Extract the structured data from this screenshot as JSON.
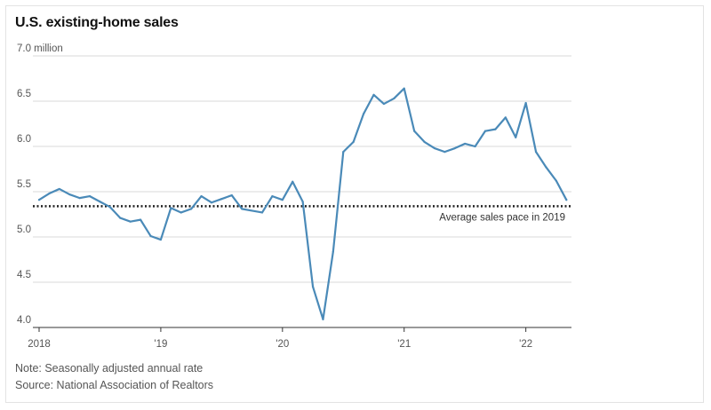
{
  "chart_data": {
    "type": "line",
    "title": "U.S. existing-home sales",
    "unit_label": "7.0 million",
    "ylim": [
      4.0,
      7.0
    ],
    "yticks": [
      7.0,
      6.5,
      6.0,
      5.5,
      5.0,
      4.5,
      4.0
    ],
    "ytick_labels": [
      "7.0 million",
      "6.5",
      "6.0",
      "5.5",
      "5.0",
      "4.5",
      "4.0"
    ],
    "xlim": [
      0,
      52.5
    ],
    "xticks": [
      0,
      12,
      24,
      36,
      48
    ],
    "xtick_labels": [
      "2018",
      "'19",
      "'20",
      "'21",
      "'22"
    ],
    "grid": true,
    "color": "#4a8ab8",
    "series": [
      {
        "values": [
          5.41,
          5.48,
          5.53,
          5.47,
          5.43,
          5.45,
          5.39,
          5.33,
          5.21,
          5.17,
          5.19,
          5.01,
          4.97,
          5.32,
          5.27,
          5.31,
          5.45,
          5.38,
          5.42,
          5.46,
          5.31,
          5.29,
          5.27,
          5.45,
          5.41,
          5.61,
          5.39,
          4.45,
          4.09,
          4.84,
          5.94,
          6.05,
          6.36,
          6.57,
          6.47,
          6.53,
          6.64,
          6.17,
          6.05,
          5.98,
          5.94,
          5.98,
          6.03,
          6.0,
          6.17,
          6.19,
          6.32,
          6.1,
          6.48,
          5.94,
          5.77,
          5.62,
          5.41
        ]
      }
    ],
    "reference_line": {
      "value": 5.34,
      "label": "Average sales pace in 2019"
    }
  },
  "notes": {
    "note": "Note: Seasonally adjusted annual rate",
    "source": "Source: National Association of Realtors"
  }
}
